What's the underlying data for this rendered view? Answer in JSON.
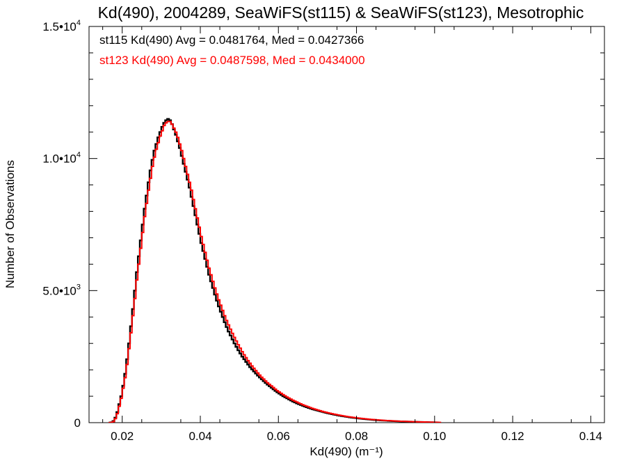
{
  "chart_data": {
    "type": "step",
    "title": "Kd(490), 2004289, SeaWiFS(st115) & SeaWiFS(st123), Mesotrophic",
    "xlabel": "Kd(490) (m⁻¹)",
    "ylabel": "Number of Observations",
    "xlim": [
      0.0115,
      0.1435
    ],
    "ylim": [
      0,
      15000
    ],
    "xticks": [
      0.02,
      0.04,
      0.06,
      0.08,
      0.1,
      0.12,
      0.14
    ],
    "xtick_labels": [
      "0.02",
      "0.04",
      "0.06",
      "0.08",
      "0.10",
      "0.12",
      "0.14"
    ],
    "yticks": [
      {
        "value": 0,
        "label": "0",
        "exp": ""
      },
      {
        "value": 5000,
        "label": "5.0•10",
        "exp": "3"
      },
      {
        "value": 10000,
        "label": "1.0•10",
        "exp": "4"
      },
      {
        "value": 15000,
        "label": "1.5•10",
        "exp": "4"
      }
    ],
    "grid": false,
    "bin_width": 0.0005,
    "series": [
      {
        "name": "st115",
        "color": "#000000",
        "annotation": "st115 Kd(490) Avg = 0.0481764, Med = 0.0427366",
        "x_start": 0.0165,
        "values": [
          0,
          10,
          60,
          190,
          400,
          700,
          1000,
          1400,
          1850,
          2400,
          3000,
          3650,
          4300,
          5000,
          5700,
          6300,
          6900,
          7500,
          8100,
          8600,
          9100,
          9550,
          9950,
          10300,
          10550,
          10800,
          11000,
          11200,
          11350,
          11450,
          11500,
          11450,
          11300,
          11100,
          10900,
          10650,
          10400,
          10100,
          9800,
          9500,
          9200,
          8900,
          8550,
          8200,
          7850,
          7500,
          7150,
          6800,
          6500,
          6200,
          5900,
          5600,
          5350,
          5100,
          4850,
          4620,
          4400,
          4200,
          4000,
          3800,
          3620,
          3450,
          3300,
          3150,
          3000,
          2870,
          2740,
          2620,
          2500,
          2400,
          2300,
          2200,
          2100,
          2020,
          1940,
          1860,
          1780,
          1710,
          1640,
          1570,
          1500,
          1440,
          1380,
          1320,
          1260,
          1200,
          1150,
          1100,
          1050,
          1000,
          960,
          920,
          880,
          840,
          800,
          765,
          730,
          700,
          670,
          640,
          610,
          585,
          560,
          535,
          510,
          490,
          470,
          450,
          430,
          410,
          390,
          372,
          355,
          338,
          322,
          306,
          291,
          277,
          263,
          250,
          238,
          226,
          215,
          204,
          194,
          184,
          175,
          166,
          158,
          150,
          142,
          135,
          128,
          121,
          114,
          108,
          102,
          96,
          91,
          86,
          81,
          77,
          73,
          69,
          65,
          61,
          58,
          55,
          52,
          49,
          46,
          43,
          40,
          38,
          36,
          34,
          32,
          30,
          28,
          26,
          24,
          22,
          20,
          18,
          16,
          14,
          12,
          10,
          8
        ]
      },
      {
        "name": "st123",
        "color": "#ff0000",
        "annotation": "st123 Kd(490) Avg = 0.0487598, Med = 0.0434000",
        "x_start": 0.0165,
        "values": [
          0,
          5,
          40,
          150,
          340,
          620,
          920,
          1300,
          1700,
          2200,
          2800,
          3400,
          4050,
          4700,
          5400,
          6000,
          6600,
          7200,
          7800,
          8300,
          8800,
          9250,
          9700,
          10050,
          10350,
          10600,
          10850,
          11050,
          11250,
          11350,
          11400,
          11400,
          11300,
          11150,
          11000,
          10800,
          10550,
          10300,
          10000,
          9700,
          9400,
          9100,
          8800,
          8450,
          8100,
          7750,
          7400,
          7050,
          6750,
          6450,
          6150,
          5850,
          5600,
          5350,
          5100,
          4870,
          4650,
          4450,
          4250,
          4050,
          3870,
          3700,
          3540,
          3380,
          3230,
          3090,
          2950,
          2820,
          2690,
          2570,
          2460,
          2350,
          2250,
          2150,
          2060,
          1970,
          1880,
          1800,
          1720,
          1650,
          1580,
          1510,
          1450,
          1390,
          1330,
          1270,
          1210,
          1160,
          1110,
          1060,
          1015,
          970,
          930,
          890,
          850,
          815,
          780,
          745,
          712,
          680,
          650,
          622,
          595,
          568,
          542,
          518,
          495,
          472,
          450,
          430,
          410,
          392,
          374,
          357,
          340,
          324,
          309,
          294,
          280,
          266,
          253,
          241,
          229,
          218,
          207,
          197,
          187,
          178,
          169,
          160,
          152,
          144,
          137,
          130,
          123,
          117,
          111,
          105,
          100,
          94,
          89,
          84,
          80,
          76,
          72,
          68,
          64,
          60,
          57,
          54,
          51,
          48,
          45,
          42,
          40,
          38,
          35,
          33,
          31,
          29,
          27,
          25,
          23,
          21,
          19,
          17,
          15,
          13,
          11,
          9
        ]
      }
    ]
  }
}
